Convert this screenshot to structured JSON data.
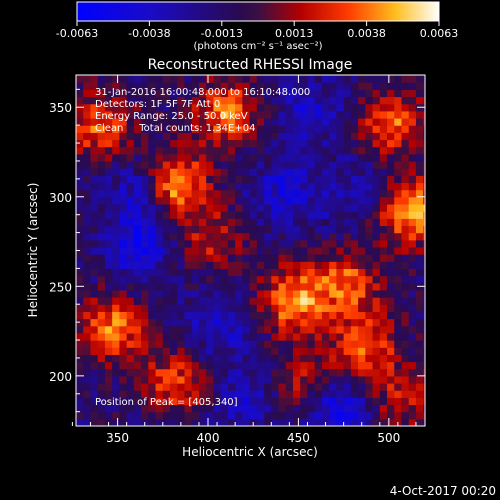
{
  "colorbar": {
    "ticks": [
      "-0.0063",
      "-0.0038",
      "-0.0013",
      "0.0013",
      "0.0038",
      "0.0063"
    ],
    "units": "(photons cm⁻² s⁻¹ asec⁻²)",
    "range": [
      -0.0063,
      0.0063
    ]
  },
  "chart_data": {
    "type": "heatmap",
    "title": "Reconstructed RHESSI Image",
    "xlabel": "Heliocentric X (arcsec)",
    "ylabel": "Heliocentric Y (arcsec)",
    "xlim": [
      327,
      520
    ],
    "ylim": [
      172,
      368
    ],
    "x_ticks": [
      350,
      400,
      450,
      500
    ],
    "y_ticks": [
      200,
      250,
      300,
      350
    ],
    "colormap": "rhessi-blue-purple-red-yellow-white",
    "sources": [
      {
        "x": 380,
        "y": 305,
        "intensity": 0.006
      },
      {
        "x": 408,
        "y": 345,
        "intensity": 0.005
      },
      {
        "x": 338,
        "y": 338,
        "intensity": 0.0045
      },
      {
        "x": 510,
        "y": 290,
        "intensity": 0.006
      },
      {
        "x": 500,
        "y": 340,
        "intensity": 0.0045
      },
      {
        "x": 475,
        "y": 250,
        "intensity": 0.0045
      },
      {
        "x": 445,
        "y": 240,
        "intensity": 0.0055
      },
      {
        "x": 345,
        "y": 225,
        "intensity": 0.005
      },
      {
        "x": 380,
        "y": 195,
        "intensity": 0.004
      },
      {
        "x": 485,
        "y": 215,
        "intensity": 0.0045
      },
      {
        "x": 400,
        "y": 275,
        "intensity": 0.003
      },
      {
        "x": 505,
        "y": 185,
        "intensity": 0.003
      },
      {
        "x": 450,
        "y": 195,
        "intensity": 0.003
      },
      {
        "x": 455,
        "y": 345,
        "intensity": -0.0025
      },
      {
        "x": 440,
        "y": 300,
        "intensity": -0.003
      },
      {
        "x": 360,
        "y": 270,
        "intensity": -0.0035
      },
      {
        "x": 405,
        "y": 225,
        "intensity": -0.0025
      },
      {
        "x": 360,
        "y": 300,
        "intensity": -0.003
      },
      {
        "x": 470,
        "y": 180,
        "intensity": -0.004
      },
      {
        "x": 420,
        "y": 185,
        "intensity": -0.0025
      },
      {
        "x": 480,
        "y": 300,
        "intensity": -0.002
      }
    ]
  },
  "annotations": {
    "time": "31-Jan-2016 16:00:48.000 to 16:10:48.000",
    "detectors": "Detectors: 1F 5F 7F Att 0",
    "energy": "Energy Range: 25.0 - 50.0 keV",
    "clean": "Clean     Total counts: 1.34E+04",
    "peak": "Position of Peak = [405,340]"
  },
  "footer": {
    "date": "4-Oct-2017 00:20"
  }
}
